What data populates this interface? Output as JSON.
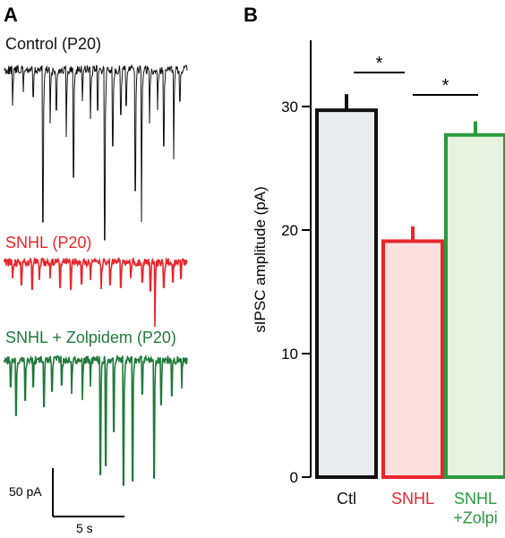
{
  "panels": {
    "a": "A",
    "b": "B"
  },
  "traces": [
    {
      "label": "Control (P20)",
      "color": "#111111"
    },
    {
      "label": "SNHL (P20)",
      "color": "#e8262b"
    },
    {
      "label": "SNHL + Zolpidem  (P20)",
      "color": "#1f7a3a"
    }
  ],
  "scale_bar": {
    "amplitude_label": "50 pA",
    "time_label": "5 s"
  },
  "chart_data": {
    "type": "bar",
    "title": "",
    "xlabel": "",
    "ylabel": "sIPSC amplitude (pA)",
    "ylim": [
      0,
      35
    ],
    "yticks": [
      0,
      10,
      20,
      30
    ],
    "categories": [
      "Ctl",
      "SNHL",
      "SNHL\n+Zolpi"
    ],
    "values": [
      29.7,
      19.1,
      27.7
    ],
    "errors": [
      1.3,
      1.2,
      1.1
    ],
    "edge_colors": [
      "#111111",
      "#e8262b",
      "#2a9a3e"
    ],
    "fill_colors": [
      "#e9ecec",
      "#fbe0e0",
      "#e6f1e0"
    ],
    "significance": [
      {
        "from": 0,
        "to": 1,
        "label": "*"
      },
      {
        "from": 1,
        "to": 2,
        "label": "*"
      }
    ],
    "grid": false
  }
}
